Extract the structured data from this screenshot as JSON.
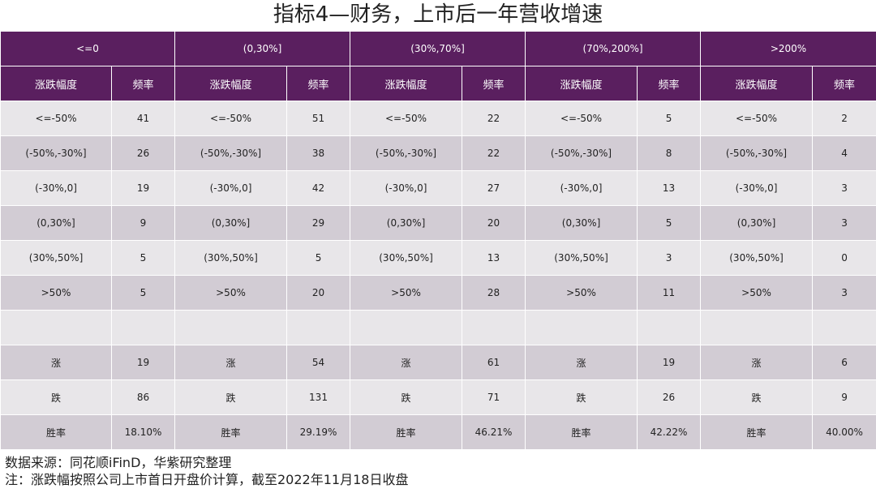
{
  "title": "指标4—财务，上市后一年营收增速",
  "groups": [
    "<=0",
    "(0,30%]",
    "(30%,70%]",
    "(70%,200%]",
    ">200%"
  ],
  "col_headers": [
    "涨跌幅度",
    "频率"
  ],
  "rows": [
    [
      "<=-50%",
      "41",
      "<=-50%",
      "51",
      "<=-50%",
      "22",
      "<=-50%",
      "5",
      "<=-50%",
      "2"
    ],
    [
      "(-50%,-30%]",
      "26",
      "(-50%,-30%]",
      "38",
      "(-50%,-30%]",
      "22",
      "(-50%,-30%]",
      "8",
      "(-50%,-30%]",
      "4"
    ],
    [
      "(-30%,0]",
      "19",
      "(-30%,0]",
      "42",
      "(-30%,0]",
      "27",
      "(-30%,0]",
      "13",
      "(-30%,0]",
      "3"
    ],
    [
      "(0,30%]",
      "9",
      "(0,30%]",
      "29",
      "(0,30%]",
      "20",
      "(0,30%]",
      "5",
      "(0,30%]",
      "3"
    ],
    [
      "(30%,50%]",
      "5",
      "(30%,50%]",
      "5",
      "(30%,50%]",
      "13",
      "(30%,50%]",
      "3",
      "(30%,50%]",
      "0"
    ],
    [
      ">50%",
      "5",
      ">50%",
      "20",
      ">50%",
      "28",
      ">50%",
      "11",
      ">50%",
      "3"
    ],
    [
      "",
      "",
      "",
      "",
      "",
      "",
      "",
      "",
      "",
      ""
    ],
    [
      "涨",
      "19",
      "涨",
      "54",
      "涨",
      "61",
      "涨",
      "19",
      "涨",
      "6"
    ],
    [
      "跌",
      "86",
      "跌",
      "131",
      "跌",
      "71",
      "跌",
      "26",
      "跌",
      "9"
    ],
    [
      "胜率",
      "18.10%",
      "胜率",
      "29.19%",
      "胜率",
      "46.21%",
      "胜率",
      "42.22%",
      "胜率",
      "40.00%"
    ]
  ],
  "notes": {
    "source": "数据来源：同花顺iFinD，华紫研究整理",
    "note": "注：涨跌幅按照公司上市首日开盘价计算，截至2022年11月18日收盘"
  },
  "colors": {
    "header_bg": "#5a1f5f",
    "row_light": "#e8e6e9",
    "row_dark": "#d2ccd4"
  }
}
